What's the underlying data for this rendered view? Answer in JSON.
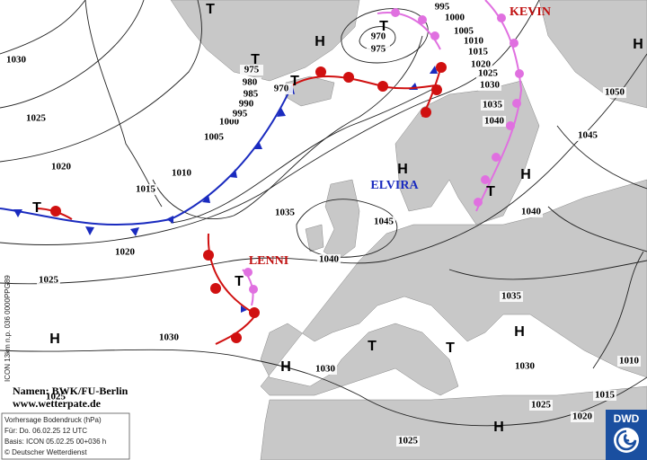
{
  "map": {
    "isobar_labels": [
      "1030",
      "1025",
      "1020",
      "1015",
      "1010",
      "1005",
      "1000",
      "995",
      "990",
      "985",
      "980",
      "975",
      "970",
      "970",
      "975",
      "995",
      "1000",
      "1005",
      "1010",
      "1015",
      "1020",
      "1025",
      "1030",
      "1035",
      "1040",
      "1045",
      "1050",
      "1040",
      "1035",
      "1045",
      "1040",
      "1020",
      "1025",
      "1030",
      "1030",
      "1035",
      "1030",
      "1025",
      "1020",
      "1015",
      "1010",
      "1025",
      "1025"
    ],
    "pressure_centers": [
      "T",
      "H",
      "T",
      "T",
      "T",
      "H",
      "T",
      "H",
      "H",
      "T",
      "T",
      "H",
      "H",
      "T",
      "T",
      "H",
      "H"
    ],
    "storms": [
      "KEVIN",
      "ELVIRA",
      "LENNI"
    ]
  },
  "credits": {
    "names": "Namen: BWK/FU-Berlin",
    "website": "www.wetterpate.de"
  },
  "info_box": {
    "title": "Vorhersage Bodendruck (hPa)",
    "valid": "Für:  Do. 06.02.25  12 UTC",
    "base": "Basis: ICON  05.02.25 00+036 h",
    "copyright": "© Deutscher Wetterdienst"
  },
  "side_note": "ICON 13km n.p. 036 0000PPG89",
  "logo": "DWD"
}
